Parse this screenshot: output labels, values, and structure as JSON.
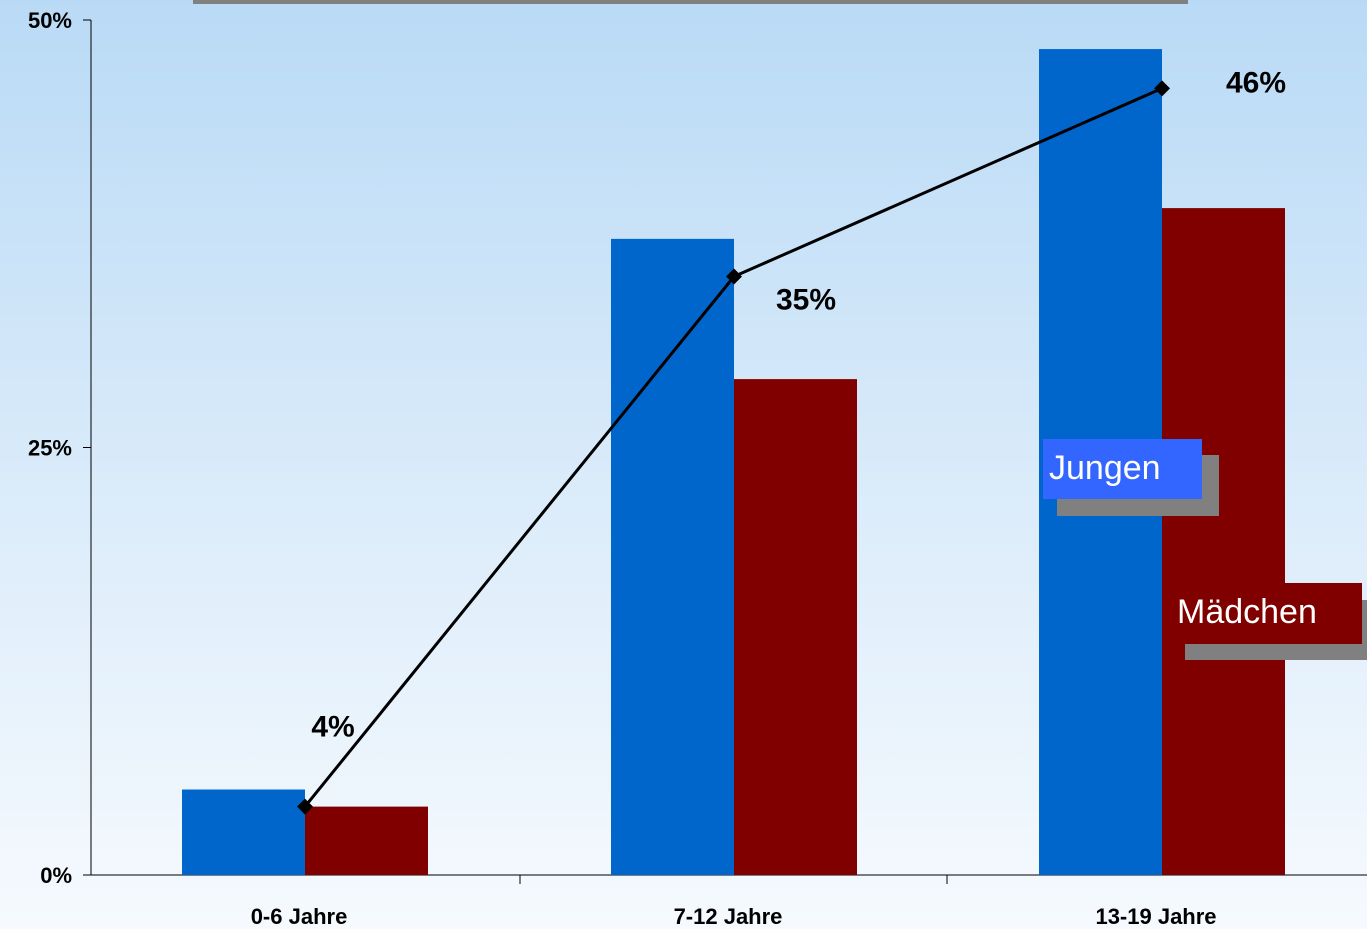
{
  "chart_data": {
    "type": "bar",
    "categories": [
      "0-6 Jahre",
      "7-12 Jahre",
      "13-19 Jahre"
    ],
    "series": [
      {
        "name": "Jungen",
        "values": [
          5.0,
          37.2,
          48.3
        ],
        "color": "#0066cc"
      },
      {
        "name": "Mädchen",
        "values": [
          4.0,
          29.0,
          39.0
        ],
        "color": "#800000"
      }
    ],
    "line": {
      "values": [
        4,
        35,
        46
      ],
      "labels": [
        "4%",
        "35%",
        "46%"
      ],
      "color": "#000000"
    },
    "ylim": [
      0,
      50
    ],
    "yticks": [
      0,
      25,
      50
    ],
    "ytick_labels": [
      "0%",
      "25%",
      "50%"
    ],
    "grid": false,
    "legend": "right",
    "title": "",
    "xlabel": "",
    "ylabel": ""
  },
  "legend": {
    "items": [
      {
        "label": "Jungen",
        "color": "#3366ff"
      },
      {
        "label": "Mädchen",
        "color": "#800000"
      }
    ]
  }
}
